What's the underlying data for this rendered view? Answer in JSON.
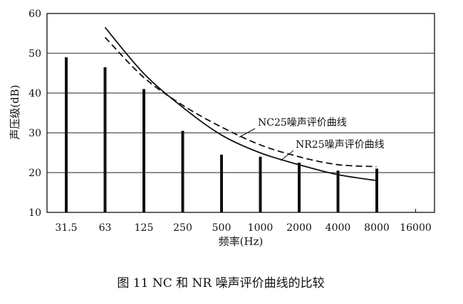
{
  "chart_data": {
    "type": "bar",
    "categories": [
      "31.5",
      "63",
      "125",
      "250",
      "500",
      "1000",
      "2000",
      "4000",
      "8000",
      "16000"
    ],
    "values": [
      49,
      46.5,
      41,
      30.5,
      24.5,
      24,
      22.5,
      20.5,
      21,
      null
    ],
    "xlabel": "频率(Hz)",
    "ylabel": "声压级(dB)",
    "ylim": [
      10,
      60
    ],
    "yticks": [
      10,
      20,
      30,
      40,
      50,
      60
    ],
    "grid": true,
    "curves": [
      {
        "name": "NC25噪声评价曲线",
        "style": "dashed",
        "points": [
          [
            63,
            54
          ],
          [
            125,
            44
          ],
          [
            250,
            37
          ],
          [
            500,
            31.5
          ],
          [
            1000,
            27
          ],
          [
            2000,
            24
          ],
          [
            4000,
            22
          ],
          [
            8000,
            21.5
          ]
        ]
      },
      {
        "name": "NR25噪声评价曲线",
        "style": "solid",
        "points": [
          [
            63,
            56.5
          ],
          [
            125,
            45
          ],
          [
            250,
            36.5
          ],
          [
            500,
            29.5
          ],
          [
            1000,
            25
          ],
          [
            2000,
            22
          ],
          [
            4000,
            19.5
          ],
          [
            8000,
            18
          ]
        ]
      }
    ],
    "caption": "图 11   NC 和 NR 噪声评价曲线的比较"
  }
}
